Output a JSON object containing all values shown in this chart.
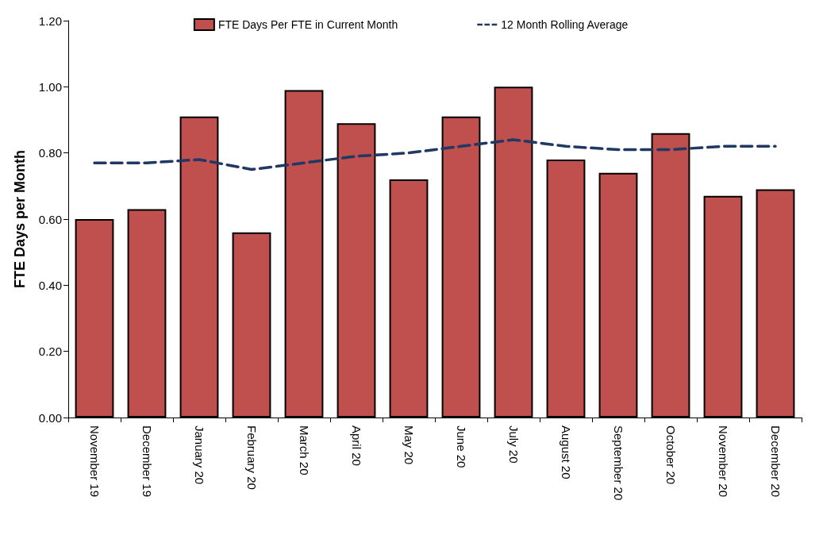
{
  "chart_data": {
    "type": "bar",
    "ylabel": "FTE Days per Month",
    "categories": [
      "November 19",
      "December 19",
      "January 20",
      "February 20",
      "March 20",
      "April 20",
      "May 20",
      "June 20",
      "July 20",
      "August 20",
      "September 20",
      "October 20",
      "November 20",
      "December 20"
    ],
    "series": [
      {
        "name": "FTE Days Per FTE in Current Month",
        "color": "#c0504d",
        "values": [
          0.6,
          0.63,
          0.91,
          0.56,
          0.99,
          0.89,
          0.72,
          0.91,
          1.0,
          0.78,
          0.74,
          0.86,
          0.67,
          0.69
        ]
      },
      {
        "name": "12 Month Rolling Average",
        "type": "line",
        "color": "#1f3864",
        "line_style": "dashed",
        "marker": "none",
        "values": [
          0.77,
          0.77,
          0.78,
          0.75,
          0.77,
          0.79,
          0.8,
          0.82,
          0.84,
          0.82,
          0.81,
          0.81,
          0.82,
          0.82
        ]
      }
    ],
    "ylim": [
      0,
      1.2
    ],
    "yticks": [
      {
        "value": 0,
        "label": "0.00"
      },
      {
        "value": 0.2,
        "label": "0.20"
      },
      {
        "value": 0.4,
        "label": "0.40"
      },
      {
        "value": 0.6,
        "label": "0.60"
      },
      {
        "value": 0.8,
        "label": "0.80"
      },
      {
        "value": 1,
        "label": "1.00"
      },
      {
        "value": 1.2,
        "label": "1.20"
      }
    ],
    "grid": false,
    "legend": "top"
  }
}
